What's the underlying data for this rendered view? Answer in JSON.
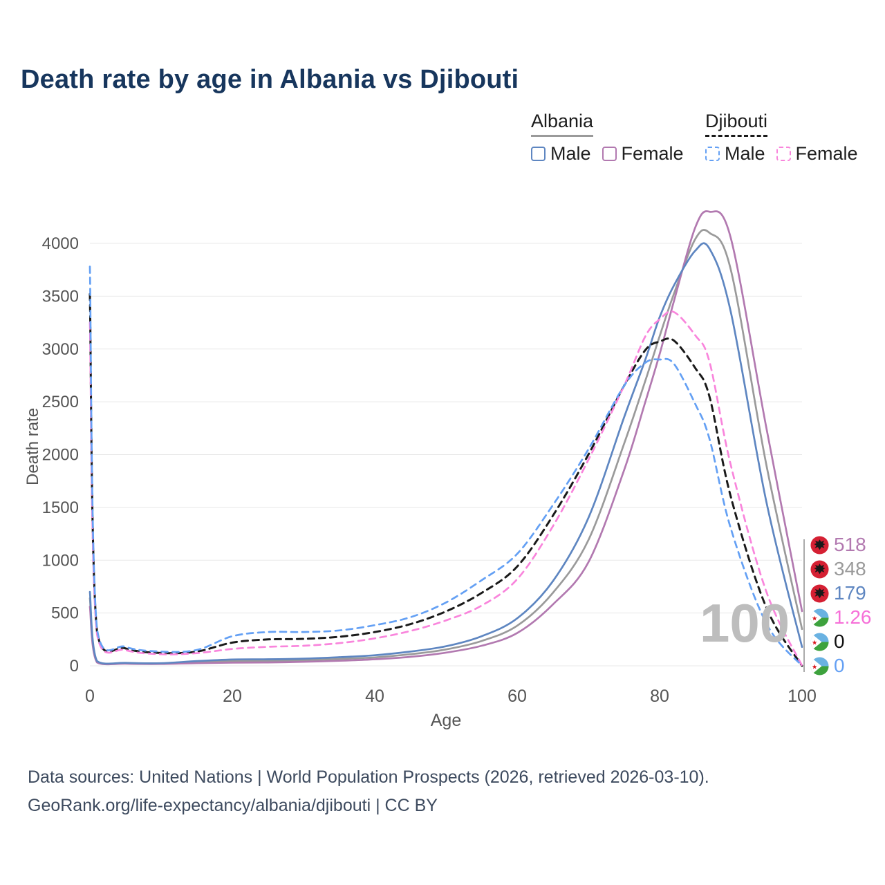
{
  "title": "Death rate by age in Albania vs Djibouti",
  "legend": {
    "albania": {
      "heading": "Albania",
      "male": "Male",
      "female": "Female"
    },
    "djibouti": {
      "heading": "Djibouti",
      "male": "Male",
      "female": "Female"
    }
  },
  "watermark": "100",
  "footer": {
    "line1": "Data sources: United Nations | World Population Prospects (2026, retrieved 2026-03-10).",
    "line2": "GeoRank.org/life-expectancy/albania/djibouti | CC BY"
  },
  "chart_data": {
    "type": "line",
    "title": "Death rate by age in Albania vs Djibouti",
    "xlabel": "Age",
    "ylabel": "Death rate",
    "xlim": [
      0,
      100
    ],
    "ylim": [
      0,
      4000
    ],
    "xticks": [
      0,
      20,
      40,
      60,
      80,
      100
    ],
    "yticks": [
      0,
      500,
      1000,
      1500,
      2000,
      2500,
      3000,
      3500,
      4000
    ],
    "grid": "horizontal",
    "legend_position": "top-right",
    "hover_age": 100,
    "x": [
      0,
      1,
      5,
      10,
      15,
      20,
      25,
      30,
      35,
      40,
      45,
      50,
      55,
      60,
      65,
      70,
      75,
      78,
      80,
      82,
      85,
      87,
      90,
      95,
      100
    ],
    "series": [
      {
        "id": "albania_total",
        "name": "Albania (both sexes)",
        "color": "#9a9a9a",
        "dash": "solid",
        "values": [
          640,
          38,
          24,
          21,
          35,
          45,
          47,
          53,
          65,
          80,
          110,
          155,
          235,
          380,
          690,
          1190,
          2100,
          2700,
          3120,
          3520,
          4040,
          4100,
          3750,
          1900,
          348
        ]
      },
      {
        "id": "albania_female",
        "name": "Albania Female",
        "color": "#b279b0",
        "dash": "solid",
        "values": [
          560,
          32,
          20,
          18,
          25,
          30,
          32,
          38,
          48,
          62,
          85,
          125,
          190,
          310,
          580,
          980,
          1850,
          2500,
          2950,
          3450,
          4150,
          4300,
          4050,
          2250,
          518
        ]
      },
      {
        "id": "albania_male",
        "name": "Albania Male",
        "color": "#5e86c1",
        "dash": "solid",
        "values": [
          700,
          45,
          28,
          25,
          45,
          60,
          62,
          68,
          82,
          100,
          135,
          185,
          280,
          450,
          800,
          1400,
          2350,
          2900,
          3300,
          3600,
          3930,
          3950,
          3350,
          1550,
          179
        ]
      },
      {
        "id": "djibouti_total",
        "name": "Djibouti (both sexes)",
        "color": "#1a1a1a",
        "dash": "dashed",
        "values": [
          3520,
          325,
          165,
          122,
          135,
          220,
          250,
          255,
          275,
          320,
          395,
          515,
          690,
          940,
          1420,
          2000,
          2650,
          2990,
          3070,
          3080,
          2820,
          2550,
          1600,
          550,
          0
        ]
      },
      {
        "id": "djibouti_female",
        "name": "Djibouti Female",
        "color": "#f985dc",
        "dash": "dashed",
        "values": [
          3250,
          300,
          150,
          110,
          120,
          160,
          180,
          190,
          215,
          260,
          330,
          430,
          570,
          820,
          1320,
          1950,
          2650,
          3120,
          3280,
          3350,
          3130,
          2880,
          1900,
          700,
          1.26
        ]
      },
      {
        "id": "djibouti_male",
        "name": "Djibouti Male",
        "color": "#64a0f4",
        "dash": "dashed",
        "values": [
          3780,
          350,
          180,
          135,
          150,
          280,
          320,
          320,
          335,
          385,
          460,
          600,
          810,
          1060,
          1520,
          2050,
          2650,
          2870,
          2900,
          2860,
          2480,
          2150,
          1300,
          400,
          0
        ]
      }
    ],
    "end_labels": [
      {
        "value": "518",
        "series": "Albania Female",
        "color": "#b279b0",
        "flag": "albania"
      },
      {
        "value": "348",
        "series": "Albania",
        "color": "#9a9a9a",
        "flag": "albania"
      },
      {
        "value": "179",
        "series": "Albania Male",
        "color": "#5e86c1",
        "flag": "albania"
      },
      {
        "value": "1.26",
        "series": "Djibouti Female",
        "color": "#f66fd8",
        "flag": "djibouti"
      },
      {
        "value": "0",
        "series": "Djibouti",
        "color": "#111111",
        "flag": "djibouti"
      },
      {
        "value": "0",
        "series": "Djibouti Male",
        "color": "#64a0f4",
        "flag": "djibouti"
      }
    ]
  }
}
